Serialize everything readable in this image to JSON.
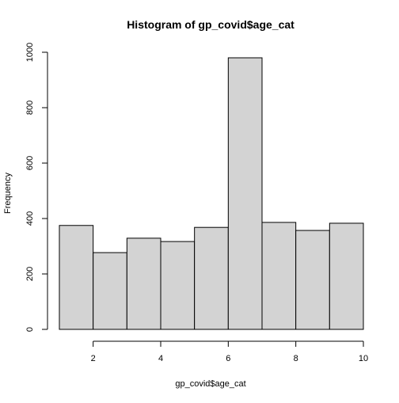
{
  "chart_data": {
    "type": "bar",
    "title": "Histogram of gp_covid$age_cat",
    "xlabel": "gp_covid$age_cat",
    "ylabel": "Frequency",
    "bins": [
      {
        "x0": 1,
        "x1": 2,
        "count": 375
      },
      {
        "x0": 2,
        "x1": 3,
        "count": 277
      },
      {
        "x0": 3,
        "x1": 4,
        "count": 329
      },
      {
        "x0": 4,
        "x1": 5,
        "count": 317
      },
      {
        "x0": 5,
        "x1": 6,
        "count": 368
      },
      {
        "x0": 6,
        "x1": 7,
        "count": 980
      },
      {
        "x0": 7,
        "x1": 8,
        "count": 386
      },
      {
        "x0": 8,
        "x1": 9,
        "count": 357
      },
      {
        "x0": 9,
        "x1": 10,
        "count": 383
      }
    ],
    "xlim": [
      1,
      10
    ],
    "ylim": [
      0,
      1000
    ],
    "x_ticks": [
      2,
      4,
      6,
      8,
      10
    ],
    "y_ticks": [
      0,
      200,
      400,
      600,
      800,
      1000
    ],
    "bar_fill": "#d3d3d3",
    "bar_stroke": "#000000",
    "grid": false,
    "legend": "none"
  }
}
